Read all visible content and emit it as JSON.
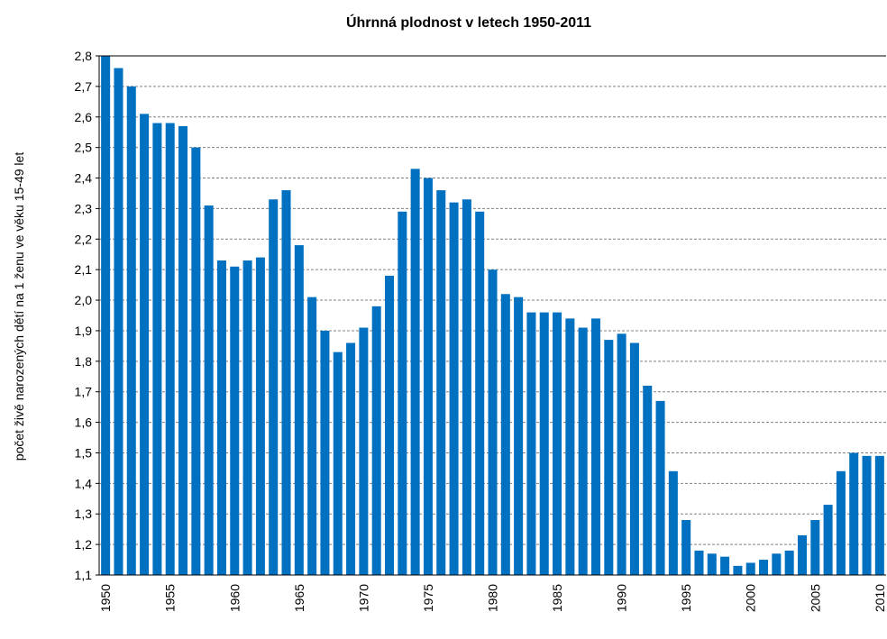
{
  "chart_data": {
    "type": "bar",
    "title": "Úhrnná plodnost  v letech 1950-2011",
    "y_label": "počet živě narozených dětí na 1 ženu ve věku 15-49 let",
    "color": "#0070c0",
    "grid": true,
    "categories": [
      "1950",
      null,
      null,
      null,
      null,
      "1955",
      null,
      null,
      null,
      null,
      "1960",
      null,
      null,
      null,
      null,
      "1965",
      null,
      null,
      null,
      null,
      "1970",
      null,
      null,
      null,
      null,
      "1975",
      null,
      null,
      null,
      null,
      "1980",
      null,
      null,
      null,
      null,
      "1985",
      null,
      null,
      null,
      null,
      "1990",
      null,
      null,
      null,
      null,
      "1995",
      null,
      null,
      null,
      null,
      "2000",
      null,
      null,
      null,
      null,
      "2005",
      null,
      null,
      null,
      null,
      "2010"
    ],
    "values": [
      2.8,
      2.76,
      2.7,
      2.61,
      2.58,
      2.58,
      2.57,
      2.5,
      2.31,
      2.13,
      2.11,
      2.13,
      2.14,
      2.33,
      2.36,
      2.18,
      2.01,
      1.9,
      1.83,
      1.86,
      1.91,
      1.98,
      2.08,
      2.29,
      2.43,
      2.4,
      2.36,
      2.32,
      2.33,
      2.29,
      2.1,
      2.02,
      2.01,
      1.96,
      1.96,
      1.96,
      1.94,
      1.91,
      1.94,
      1.87,
      1.89,
      1.86,
      1.72,
      1.67,
      1.44,
      1.28,
      1.18,
      1.17,
      1.16,
      1.13,
      1.14,
      1.15,
      1.17,
      1.18,
      1.23,
      1.28,
      1.33,
      1.44,
      1.5,
      1.49,
      1.49
    ],
    "ylim": [
      1.1,
      2.8
    ],
    "yticks": [
      {
        "value": 1.1,
        "label": "1,1"
      },
      {
        "value": 1.2,
        "label": "1,2"
      },
      {
        "value": 1.3,
        "label": "1,3"
      },
      {
        "value": 1.4,
        "label": "1,4"
      },
      {
        "value": 1.5,
        "label": "1,5"
      },
      {
        "value": 1.6,
        "label": "1,6"
      },
      {
        "value": 1.7,
        "label": "1,7"
      },
      {
        "value": 1.8,
        "label": "1,8"
      },
      {
        "value": 1.9,
        "label": "1,9"
      },
      {
        "value": 2.0,
        "label": "2,0"
      },
      {
        "value": 2.1,
        "label": "2,1"
      },
      {
        "value": 2.2,
        "label": "2,2"
      },
      {
        "value": 2.3,
        "label": "2,3"
      },
      {
        "value": 2.4,
        "label": "2,4"
      },
      {
        "value": 2.5,
        "label": "2,5"
      },
      {
        "value": 2.6,
        "label": "2,6"
      },
      {
        "value": 2.7,
        "label": "2,7"
      },
      {
        "value": 2.8,
        "label": "2,8"
      }
    ]
  }
}
